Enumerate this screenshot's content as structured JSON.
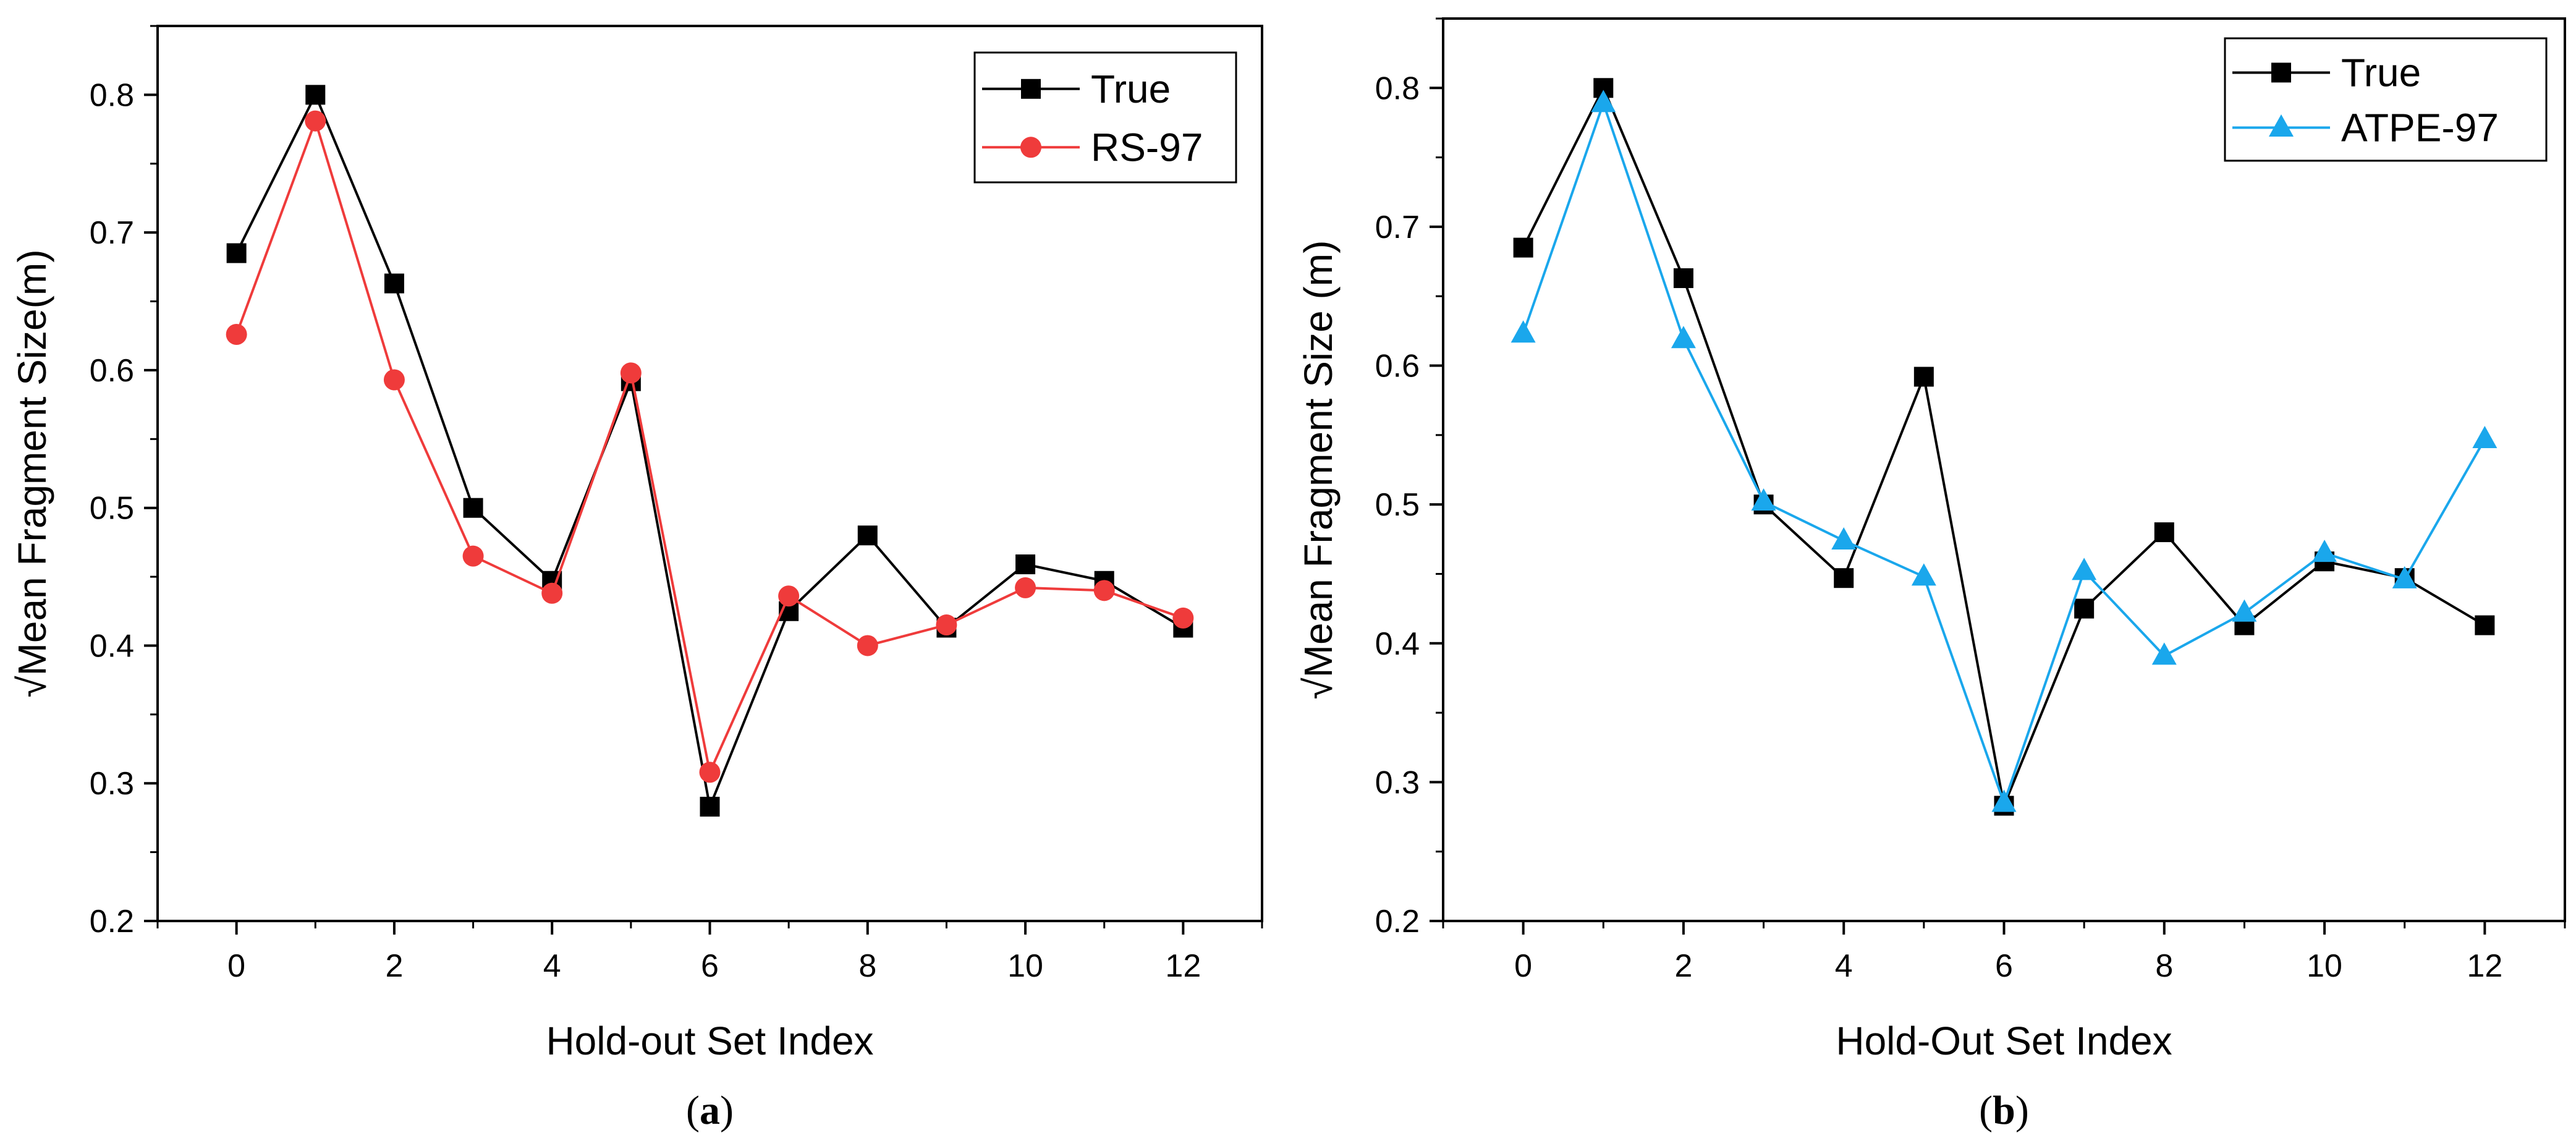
{
  "chart_data": [
    {
      "type": "line",
      "panel": "a",
      "caption_open": "(",
      "caption_letter": "a",
      "caption_close": ")",
      "xlabel": "Hold-out Set Index",
      "ylabel": "√Mean Fragment Size(m)",
      "xlim": [
        -1,
        13
      ],
      "ylim": [
        0.2,
        0.85
      ],
      "xticks": [
        0,
        2,
        4,
        6,
        8,
        10,
        12
      ],
      "xtick_labels": [
        "0",
        "2",
        "4",
        "6",
        "8",
        "10",
        "12"
      ],
      "yticks": [
        0.2,
        0.3,
        0.4,
        0.5,
        0.6,
        0.7,
        0.8
      ],
      "ytick_labels": [
        "0.2",
        "0.3",
        "0.4",
        "0.5",
        "0.6",
        "0.7",
        "0.8"
      ],
      "x": [
        0,
        1,
        2,
        3,
        4,
        5,
        6,
        7,
        8,
        9,
        10,
        11,
        12
      ],
      "legend_position": "top-right",
      "series": [
        {
          "name": "True",
          "marker": "square",
          "color": "#000000",
          "values": [
            0.685,
            0.8,
            0.663,
            0.5,
            0.447,
            0.592,
            0.283,
            0.425,
            0.48,
            0.413,
            0.459,
            0.447,
            0.413
          ]
        },
        {
          "name": "RS-97",
          "marker": "circle",
          "color": "#ef3b3b",
          "values": [
            0.626,
            0.781,
            0.593,
            0.465,
            0.438,
            0.598,
            0.308,
            0.436,
            0.4,
            0.415,
            0.442,
            0.44,
            0.42
          ]
        }
      ]
    },
    {
      "type": "line",
      "panel": "b",
      "caption_open": "(",
      "caption_letter": "b",
      "caption_close": ")",
      "xlabel": "Hold-Out Set Index",
      "ylabel": "√Mean Fragment Size (m)",
      "xlim": [
        -1,
        13
      ],
      "ylim": [
        0.2,
        0.85
      ],
      "xticks": [
        0,
        2,
        4,
        6,
        8,
        10,
        12
      ],
      "xtick_labels": [
        "0",
        "2",
        "4",
        "6",
        "8",
        "10",
        "12"
      ],
      "yticks": [
        0.2,
        0.3,
        0.4,
        0.5,
        0.6,
        0.7,
        0.8
      ],
      "ytick_labels": [
        "0.2",
        "0.3",
        "0.4",
        "0.5",
        "0.6",
        "0.7",
        "0.8"
      ],
      "x": [
        0,
        1,
        2,
        3,
        4,
        5,
        6,
        7,
        8,
        9,
        10,
        11,
        12
      ],
      "legend_position": "top-right",
      "series": [
        {
          "name": "True",
          "marker": "square",
          "color": "#000000",
          "values": [
            0.685,
            0.8,
            0.663,
            0.5,
            0.447,
            0.592,
            0.283,
            0.425,
            0.48,
            0.413,
            0.459,
            0.447,
            0.413
          ]
        },
        {
          "name": "ATPE-97",
          "marker": "triangle",
          "color": "#1aa7ec",
          "values": [
            0.623,
            0.789,
            0.619,
            0.502,
            0.474,
            0.448,
            0.285,
            0.452,
            0.391,
            0.422,
            0.465,
            0.446,
            0.547
          ]
        }
      ]
    }
  ]
}
